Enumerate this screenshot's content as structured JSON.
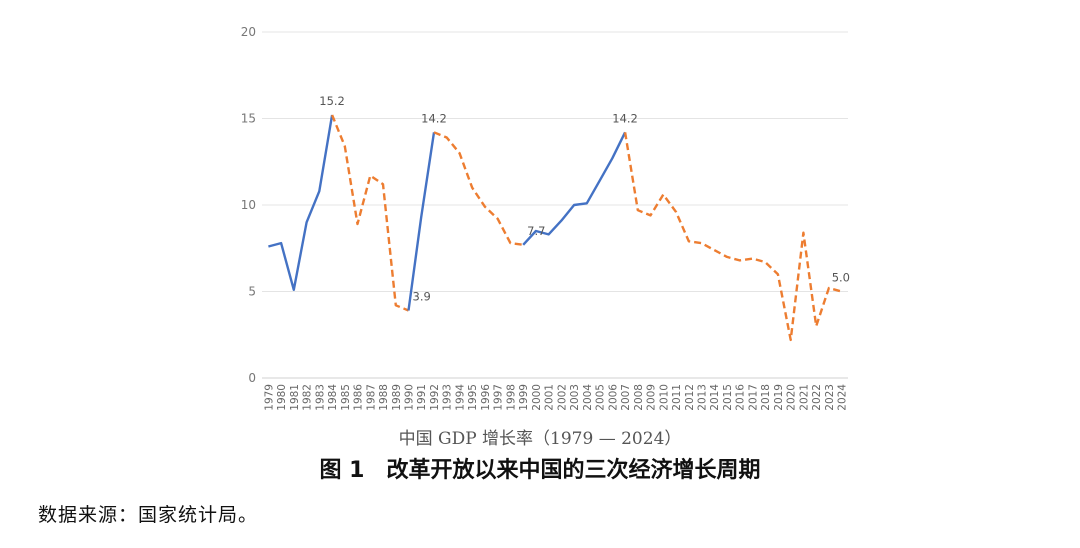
{
  "chart_data": {
    "type": "line",
    "x": [
      "1979",
      "1980",
      "1981",
      "1982",
      "1983",
      "1984",
      "1985",
      "1986",
      "1987",
      "1988",
      "1989",
      "1990",
      "1991",
      "1992",
      "1993",
      "1994",
      "1995",
      "1996",
      "1997",
      "1998",
      "1999",
      "2000",
      "2001",
      "2002",
      "2003",
      "2004",
      "2005",
      "2006",
      "2007",
      "2008",
      "2009",
      "2010",
      "2011",
      "2012",
      "2013",
      "2014",
      "2015",
      "2016",
      "2017",
      "2018",
      "2019",
      "2020",
      "2021",
      "2022",
      "2023",
      "2024"
    ],
    "values": [
      7.6,
      7.8,
      5.1,
      9.0,
      10.8,
      15.2,
      13.4,
      8.9,
      11.7,
      11.2,
      4.2,
      3.9,
      9.3,
      14.2,
      13.9,
      13.0,
      11.0,
      9.9,
      9.2,
      7.8,
      7.7,
      8.5,
      8.3,
      9.1,
      10.0,
      10.1,
      11.4,
      12.7,
      14.2,
      9.7,
      9.4,
      10.6,
      9.6,
      7.9,
      7.8,
      7.4,
      7.0,
      6.8,
      6.9,
      6.7,
      6.0,
      2.2,
      8.4,
      3.0,
      5.2,
      5.0
    ],
    "segments": [
      {
        "style": "solid",
        "color": "#4472c4",
        "from": "1979",
        "to": "1984"
      },
      {
        "style": "dashed",
        "color": "#ed7d31",
        "from": "1984",
        "to": "1990"
      },
      {
        "style": "solid",
        "color": "#4472c4",
        "from": "1990",
        "to": "1992"
      },
      {
        "style": "dashed",
        "color": "#ed7d31",
        "from": "1992",
        "to": "1999"
      },
      {
        "style": "solid",
        "color": "#4472c4",
        "from": "1999",
        "to": "2007"
      },
      {
        "style": "dashed",
        "color": "#ed7d31",
        "from": "2007",
        "to": "2024"
      }
    ],
    "annotations": [
      {
        "x": "1984",
        "text": "15.2"
      },
      {
        "x": "1990",
        "text": "3.9"
      },
      {
        "x": "1992",
        "text": "14.2"
      },
      {
        "x": "1999",
        "text": "7.7"
      },
      {
        "x": "2007",
        "text": "14.2"
      },
      {
        "x": "2024",
        "text": "5.0"
      }
    ],
    "y_ticks": [
      "0",
      "5",
      "10",
      "15",
      "20"
    ],
    "ylim": [
      0,
      20
    ],
    "grid": true,
    "xlabel": "中国 GDP 增长率（1979 — 2024）",
    "title": "图 1　改革开放以来中国的三次经济增长周期"
  },
  "source_note": "数据来源：国家统计局。"
}
